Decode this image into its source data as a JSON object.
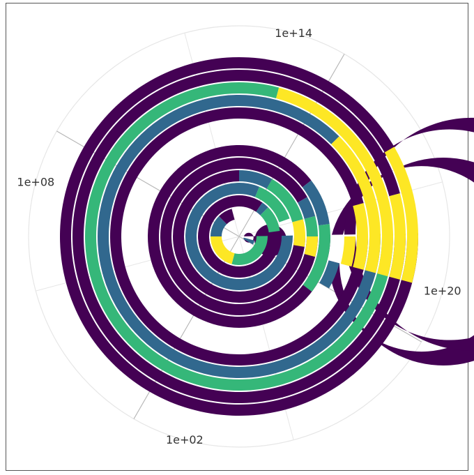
{
  "chart_data": {
    "type": "stacked-radial-bar",
    "angular_axis": {
      "scale": "log",
      "direction": "clockwise",
      "range": [
        1,
        1e+24
      ],
      "tick_labels": [
        "1e+20",
        "1e+02",
        "1e+08",
        "1e+14"
      ],
      "tick_values": [
        1e+20,
        100.0,
        100000000.0,
        100000000000000.0
      ],
      "grid": true
    },
    "colors": [
      "#440154",
      "#31688e",
      "#35b779",
      "#fde725"
    ],
    "rings": [
      {
        "segments": [
          1e+20,
          1e+21
        ],
        "colors": [
          "#440154",
          "#31688e"
        ]
      },
      {
        "segments": [
          100.0,
          10000000.0,
          10000000000.0,
          1000000000000.0
        ],
        "colors": [
          "#35b779",
          "#fde725",
          "#31688e",
          "#440154"
        ]
      },
      {
        "segments": [
          2000000000000000.0,
          1e+16,
          3e+18
        ],
        "colors": [
          "#440154",
          "#31688e",
          "#35b779"
        ]
      },
      {
        "segments": [
          300000000000000.0,
          5e+17
        ],
        "colors": [
          "#31688e",
          "#35b779"
        ]
      },
      {
        "segments": [
          10000000000000.0,
          1000000000000000.0,
          1e+18,
          4e+19
        ],
        "colors": [
          "#440154",
          "#31688e",
          "#35b779",
          "#fde725"
        ]
      },
      {
        "segments": [
          1e+17,
          1e+18,
          1e+19,
          1e+20
        ],
        "colors": [
          "#440154",
          "#31688e",
          "#35b779",
          "#fde725"
        ]
      },
      {
        "segments": [
          3e+16,
          3e+18,
          3e+21
        ],
        "colors": [
          "#440154",
          "#31688e",
          "#35b779"
        ]
      },
      {
        "segments": [
          1e+20,
          1e+21
        ],
        "colors": [
          "#440154",
          "#31688e"
        ]
      },
      {
        "segments": [
          1e+19,
          1e+20
        ],
        "colors": [
          "#440154",
          "#fde725"
        ]
      },
      {
        "segments": [
          1e+18,
          1e+20
        ],
        "colors": [
          "#440154",
          "#fde725"
        ]
      },
      {
        "segments": [
          1e+16,
          1e+20
        ],
        "colors": [
          "#31688e",
          "#fde725"
        ]
      },
      {
        "segments": [
          100000000000000.0,
          1e+20
        ],
        "colors": [
          "#35b779",
          "#fde725"
        ]
      },
      {
        "segments": [
          1e+18,
          1e+20
        ],
        "colors": [
          "#440154",
          "#fde725"
        ]
      },
      {
        "segments": [
          1e+17,
          1e+20
        ],
        "colors": [
          "#440154",
          "#fde725"
        ]
      }
    ]
  }
}
